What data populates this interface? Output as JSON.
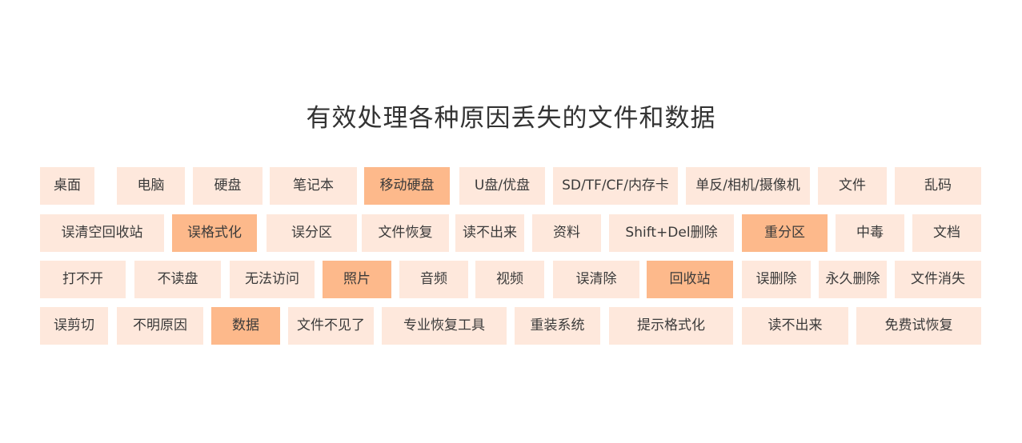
{
  "title": "有效处理各种原因丢失的文件和数据",
  "colors": {
    "tag_background": "#fee8dc",
    "tag_highlight": "#fdb98b",
    "text": "#333333"
  },
  "rows": [
    [
      {
        "label": "桌面"
      },
      {
        "label": "电脑"
      },
      {
        "label": "硬盘"
      },
      {
        "label": "笔记本"
      },
      {
        "label": "移动硬盘",
        "highlight": true
      },
      {
        "label": "U盘/优盘"
      },
      {
        "label": "SD/TF/CF/内存卡"
      },
      {
        "label": "单反/相机/摄像机"
      },
      {
        "label": "文件"
      },
      {
        "label": "乱码"
      }
    ],
    [
      {
        "label": "误清空回收站"
      },
      {
        "label": "误格式化",
        "highlight": true
      },
      {
        "label": "误分区"
      },
      {
        "label": "文件恢复"
      },
      {
        "label": "读不出来"
      },
      {
        "label": "资料"
      },
      {
        "label": "Shift+Del删除"
      },
      {
        "label": "重分区",
        "highlight": true
      },
      {
        "label": "中毒"
      },
      {
        "label": "文档"
      }
    ],
    [
      {
        "label": "打不开"
      },
      {
        "label": "不读盘"
      },
      {
        "label": "无法访问"
      },
      {
        "label": "照片",
        "highlight": true
      },
      {
        "label": "音频"
      },
      {
        "label": "视频"
      },
      {
        "label": "误清除"
      },
      {
        "label": "回收站",
        "highlight": true
      },
      {
        "label": "误删除"
      },
      {
        "label": "永久删除"
      },
      {
        "label": "文件消失"
      }
    ],
    [
      {
        "label": "误剪切"
      },
      {
        "label": "不明原因"
      },
      {
        "label": "数据",
        "highlight": true
      },
      {
        "label": "文件不见了"
      },
      {
        "label": "专业恢复工具"
      },
      {
        "label": "重装系统"
      },
      {
        "label": "提示格式化"
      },
      {
        "label": "读不出来"
      },
      {
        "label": "免费试恢复"
      }
    ]
  ]
}
